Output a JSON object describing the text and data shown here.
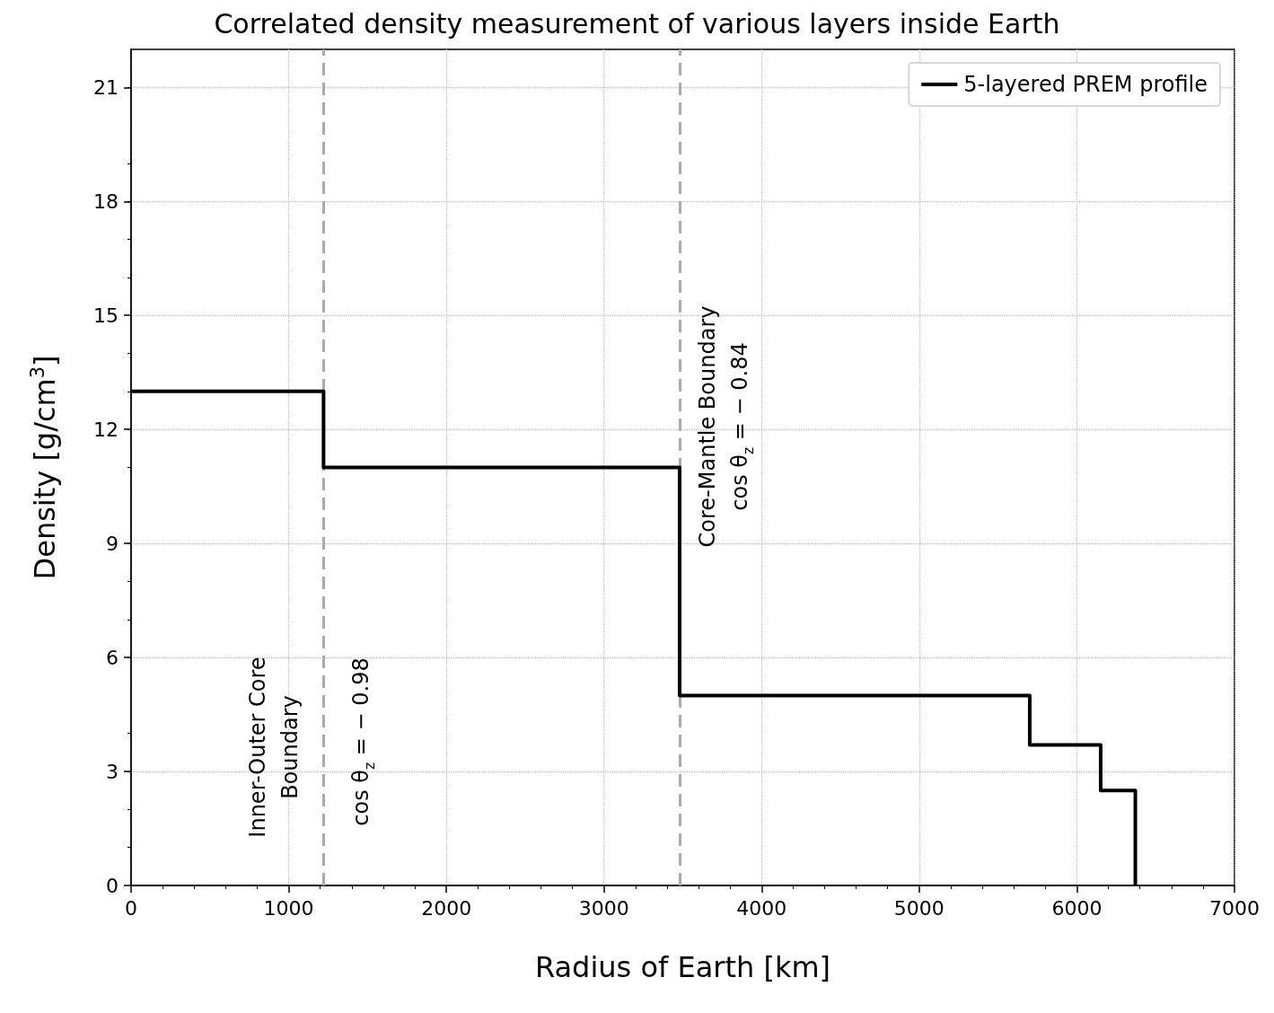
{
  "chart_data": {
    "type": "step",
    "title": "Correlated density measurement of various layers inside Earth",
    "xlabel": "Radius of Earth [km]",
    "ylabel": "Density [g/cm$^{3}$]",
    "x": [
      0,
      1221,
      3480,
      5701,
      6151,
      6371
    ],
    "series": [
      {
        "name": "5-layered PREM profile",
        "color": "#000000",
        "values": [
          13.0,
          11.0,
          5.0,
          3.7,
          2.5,
          0
        ]
      }
    ],
    "xlim": [
      0,
      7000
    ],
    "xticks": [
      0,
      1000,
      2000,
      3000,
      4000,
      5000,
      6000,
      7000
    ],
    "ylim": [
      0,
      22
    ],
    "yticks": [
      0,
      3,
      6,
      9,
      12,
      15,
      18,
      21
    ],
    "grid": true,
    "legend": "top right",
    "marker": "none",
    "line_style": "solid",
    "ref_lines": [
      {
        "axis": "x",
        "value": 1221,
        "color": "#aaaaaa",
        "line_style": "dashed",
        "label": "Inner-Outer Core\nBoundary"
      },
      {
        "axis": "x",
        "value": 3480,
        "color": "#aaaaaa",
        "line_style": "dashed",
        "label": "Core-Mantle Boundary\ncos θ$_{z}$ = − 0.84"
      }
    ],
    "annotations": [
      "cos θ$_{z}$ = − 0.98"
    ]
  }
}
